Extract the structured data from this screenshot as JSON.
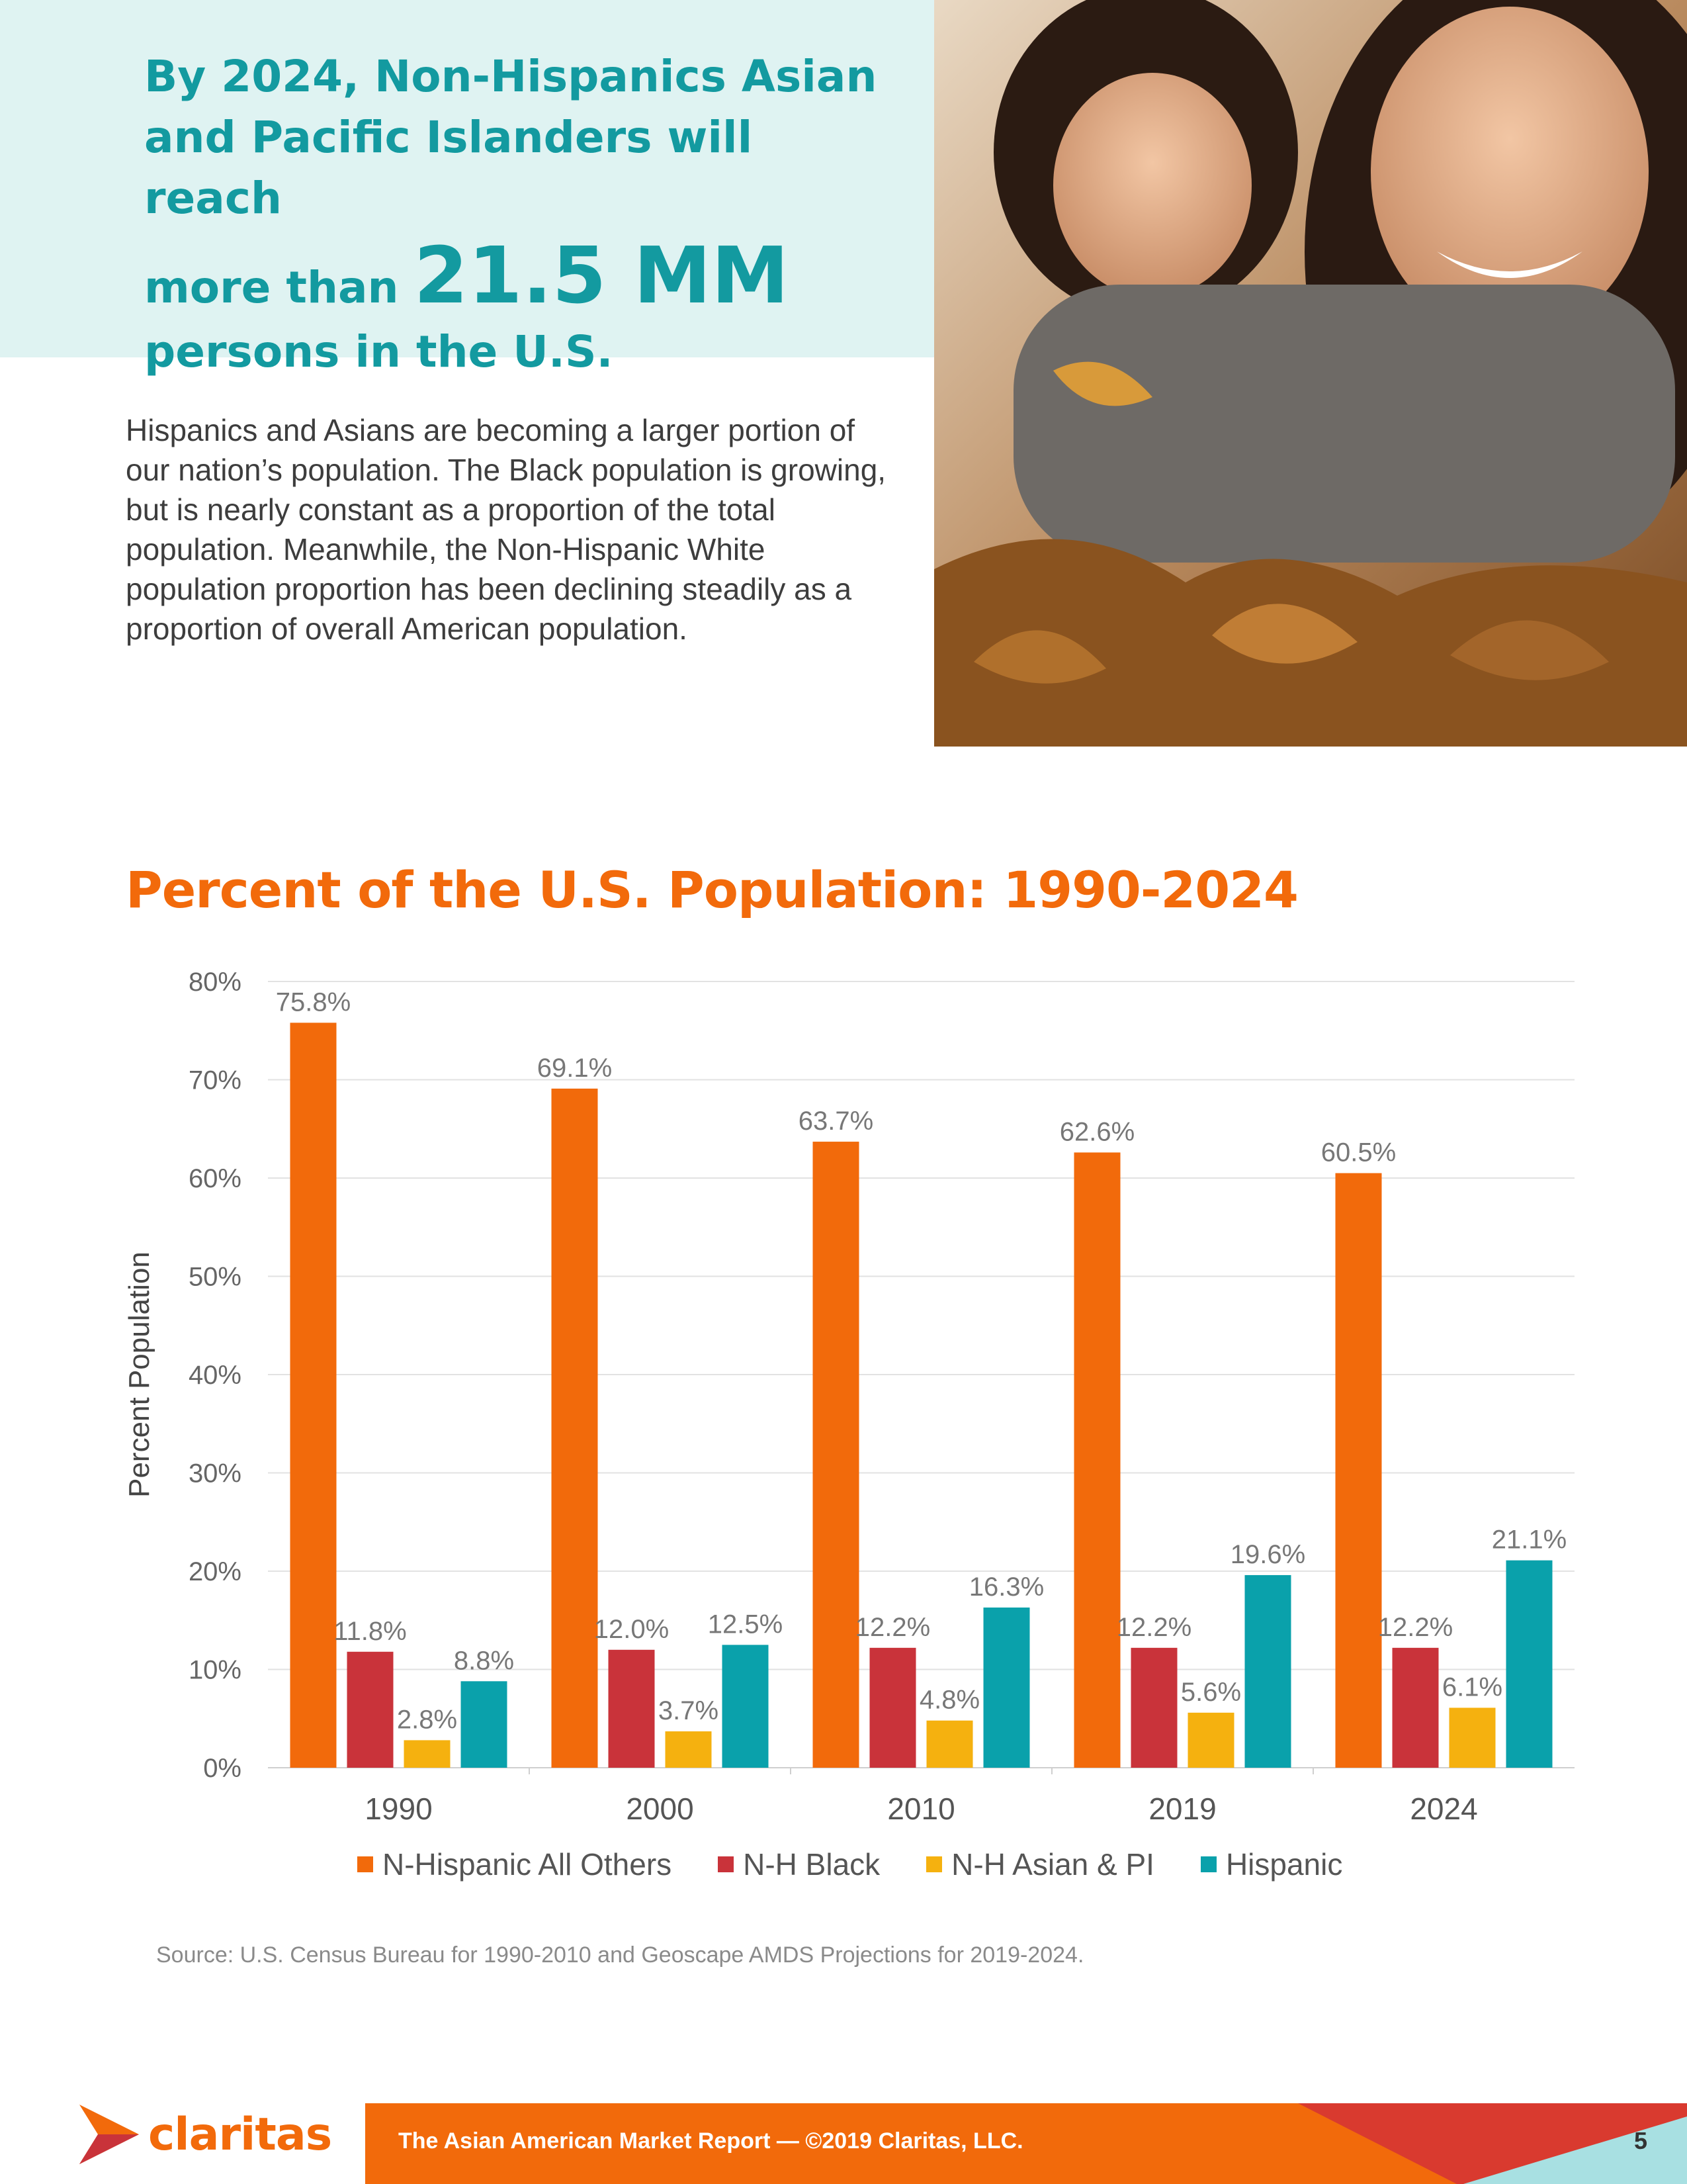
{
  "callout": {
    "line1": "By 2024, Non-Hispanics Asian",
    "line2": "and Pacific Islanders will reach",
    "line3_prefix": "more than ",
    "line3_big": "21.5 MM",
    "line4": "persons in the U.S."
  },
  "intro_text": "Hispanics and Asians are becoming a larger portion of our nation’s population. The Black population is growing, but is nearly constant as a proportion of the total population. Meanwhile, the Non-Hispanic White population proportion has been declining steadily as a proportion of overall American population.",
  "chart_data": {
    "type": "bar",
    "title": "Percent of the U.S. Population: 1990-2024",
    "xlabel": "",
    "ylabel": "Percent Population",
    "ylim": [
      0,
      80
    ],
    "yticks": [
      "0%",
      "10%",
      "20%",
      "30%",
      "40%",
      "50%",
      "60%",
      "70%",
      "80%"
    ],
    "categories": [
      "1990",
      "2000",
      "2010",
      "2019",
      "2024"
    ],
    "series": [
      {
        "name": "N-Hispanic All Others",
        "color": "#f26a0b",
        "values": [
          75.8,
          69.1,
          63.7,
          62.6,
          60.5
        ],
        "labels": [
          "75.8%",
          "69.1%",
          "63.7%",
          "62.6%",
          "60.5%"
        ]
      },
      {
        "name": "N-H Black",
        "color": "#c9333a",
        "values": [
          11.8,
          12.0,
          12.2,
          12.2,
          12.2
        ],
        "labels": [
          "11.8%",
          "12.0%",
          "12.2%",
          "12.2%",
          "12.2%"
        ]
      },
      {
        "name": "N-H Asian & PI",
        "color": "#f5b10f",
        "values": [
          2.8,
          3.7,
          4.8,
          5.6,
          6.1
        ],
        "labels": [
          "2.8%",
          "3.7%",
          "4.8%",
          "5.6%",
          "6.1%"
        ]
      },
      {
        "name": "Hispanic",
        "color": "#0aa1ab",
        "values": [
          8.8,
          12.5,
          16.3,
          19.6,
          21.1
        ],
        "labels": [
          "8.8%",
          "12.5%",
          "16.3%",
          "19.6%",
          "21.1%"
        ]
      }
    ],
    "legend_position": "bottom",
    "grid": true
  },
  "source_text": "Source: U.S. Census Bureau for 1990-2010 and Geoscape AMDS Projections for 2019-2024.",
  "footer": {
    "logo_text": "claritas",
    "report_text": "The Asian American Market Report — ©2019 Claritas, LLC.",
    "page_number": "5"
  },
  "colors": {
    "accent_orange": "#f26a0b",
    "accent_teal": "#139aa0",
    "callout_bg": "#dff3f2"
  }
}
